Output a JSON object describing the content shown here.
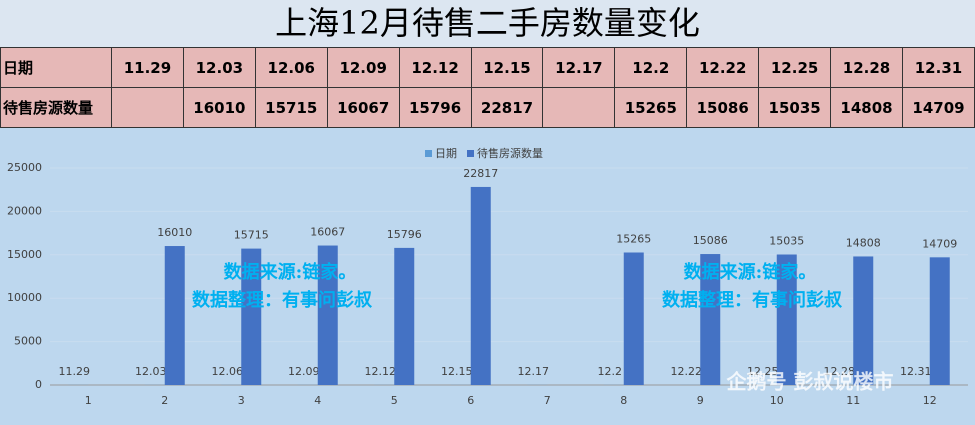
{
  "title": "上海12月待售二手房数量变化",
  "table": {
    "rows": [
      [
        "日期",
        "11.29",
        "12.03",
        "12.06",
        "12.09",
        "12.12",
        "12.15",
        "12.17",
        "12.2",
        "12.22",
        "12.25",
        "12.28",
        "12.31"
      ],
      [
        "待售房源数量",
        null,
        16010,
        15715,
        16067,
        15796,
        22817,
        null,
        15265,
        15086,
        15035,
        14808,
        14709
      ]
    ]
  },
  "chart_data": {
    "type": "bar",
    "categories": [
      "1",
      "2",
      "3",
      "4",
      "5",
      "6",
      "7",
      "8",
      "9",
      "10",
      "11",
      "12"
    ],
    "series": [
      {
        "name": "日期",
        "color": "#5b9bd5",
        "values": [
          11.29,
          12.03,
          12.06,
          12.09,
          12.12,
          12.15,
          12.17,
          12.2,
          12.22,
          12.25,
          12.28,
          12.31
        ]
      },
      {
        "name": "待售房源数量",
        "color": "#4472c4",
        "values": [
          null,
          16010,
          15715,
          16067,
          15796,
          22817,
          null,
          15265,
          15086,
          15035,
          14808,
          14709
        ]
      }
    ],
    "ylim": [
      0,
      25000
    ],
    "yticks": [
      0,
      5000,
      10000,
      15000,
      20000,
      25000
    ],
    "grid": true,
    "legend": "top",
    "annotations": [
      "数据来源:链家。",
      "数据整理：有事问彭叔",
      "数据来源:链家。",
      "数据整理：有事问彭叔",
      "企鹅号 彭叔说楼市"
    ]
  }
}
